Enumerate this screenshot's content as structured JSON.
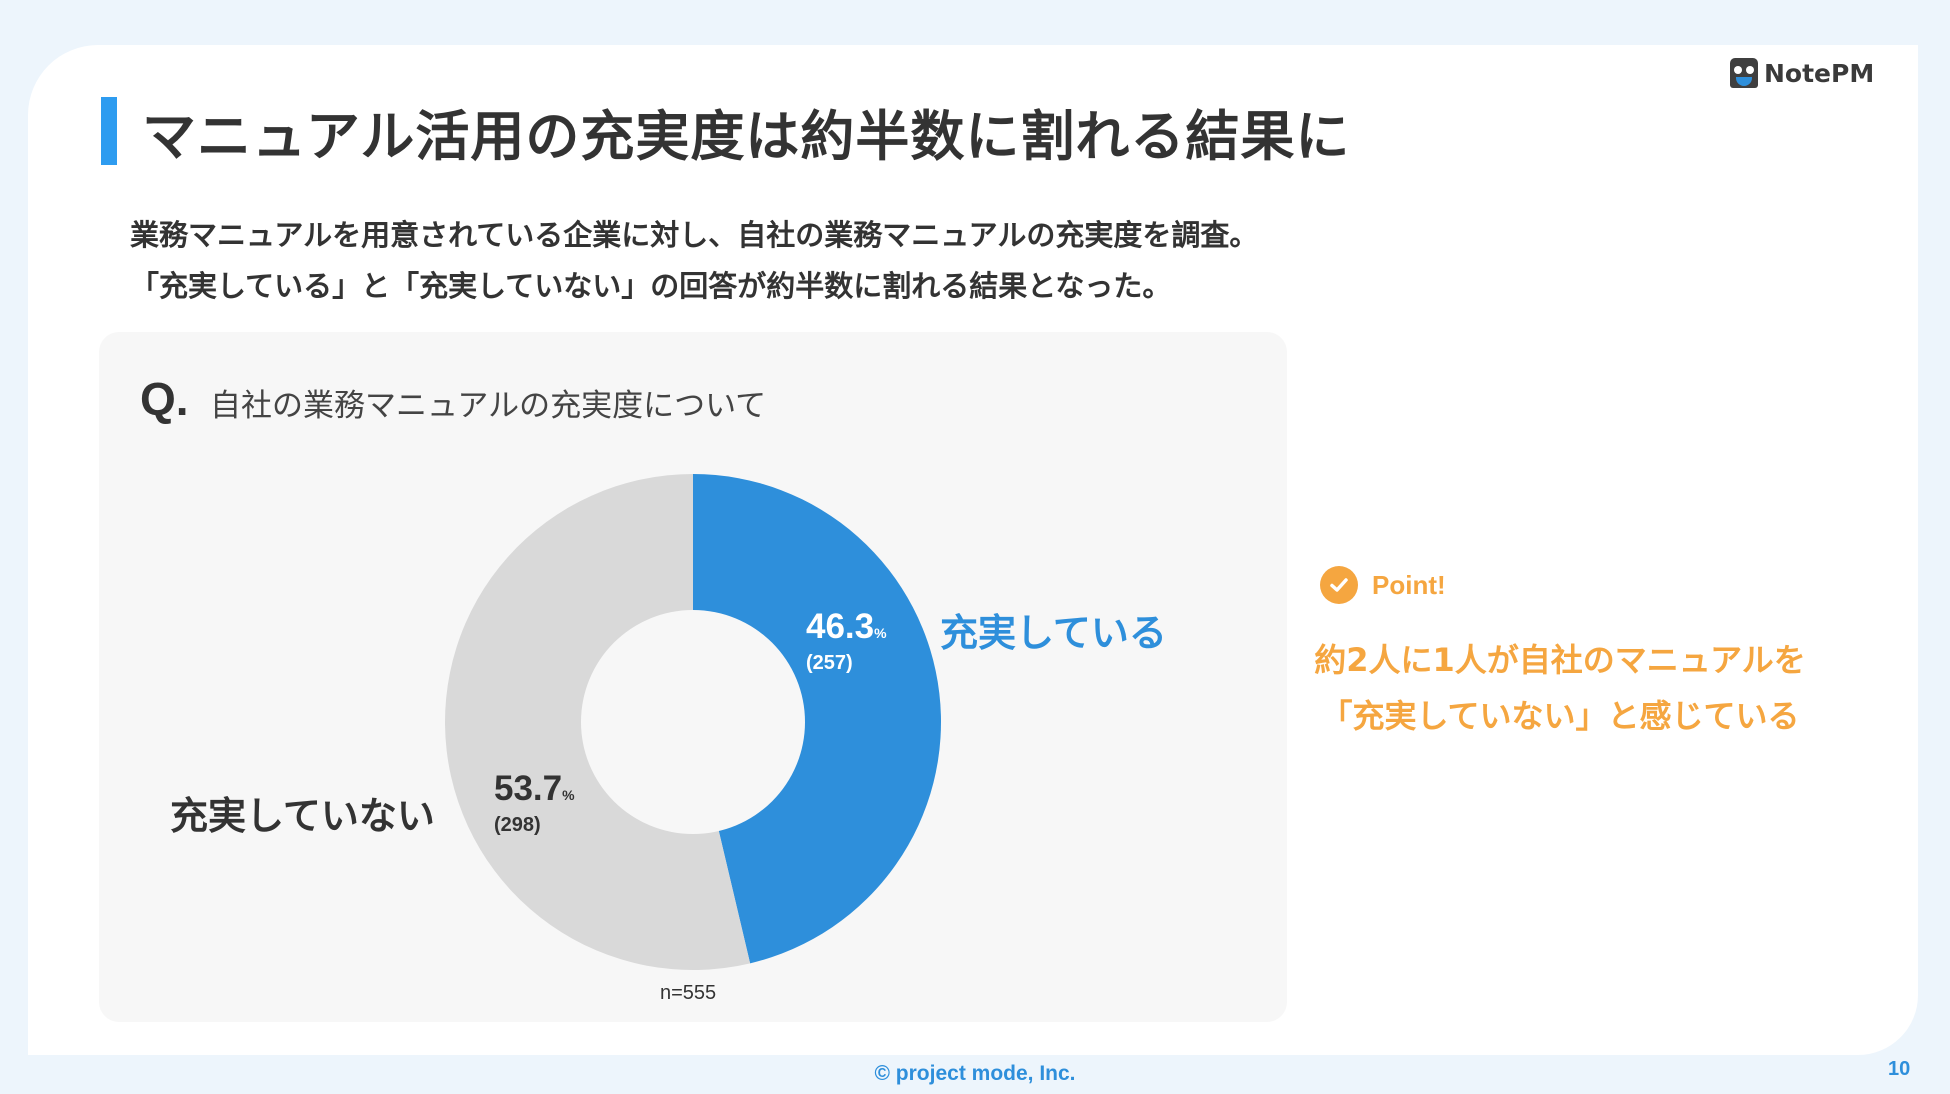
{
  "brand": {
    "logo_text": "NotePM"
  },
  "slide": {
    "title": "マニュアル活用の充実度は約半数に割れる結果に",
    "description": [
      "業務マニュアルを用意されている企業に対し、自社の業務マニュアルの充実度を調査。",
      "「充実している」と「充実していない」の回答が約半数に割れる結果となった。"
    ]
  },
  "question": {
    "mark": "Q.",
    "text": "自社の業務マニュアルの充実度について"
  },
  "chart_data": {
    "type": "pie",
    "variant": "donut",
    "slices": [
      {
        "label": "充実している",
        "percent": 46.3,
        "count": 257,
        "color": "#2e8fdb"
      },
      {
        "label": "充実していない",
        "percent": 53.7,
        "count": 298,
        "color": "#d9d9d9"
      }
    ],
    "sample_size": "n=555",
    "percent_unit": "%"
  },
  "slice_text": {
    "yes": {
      "percent": "46.3",
      "count": "(257)"
    },
    "no": {
      "percent": "53.7",
      "count": "(298)"
    }
  },
  "point": {
    "label": "Point!",
    "lines": [
      "約2人に1人が自社のマニュアルを",
      "「充実していない」と感じている"
    ],
    "color": "#f5a640"
  },
  "footer": {
    "copyright": "© project mode, Inc.",
    "page": "10"
  }
}
